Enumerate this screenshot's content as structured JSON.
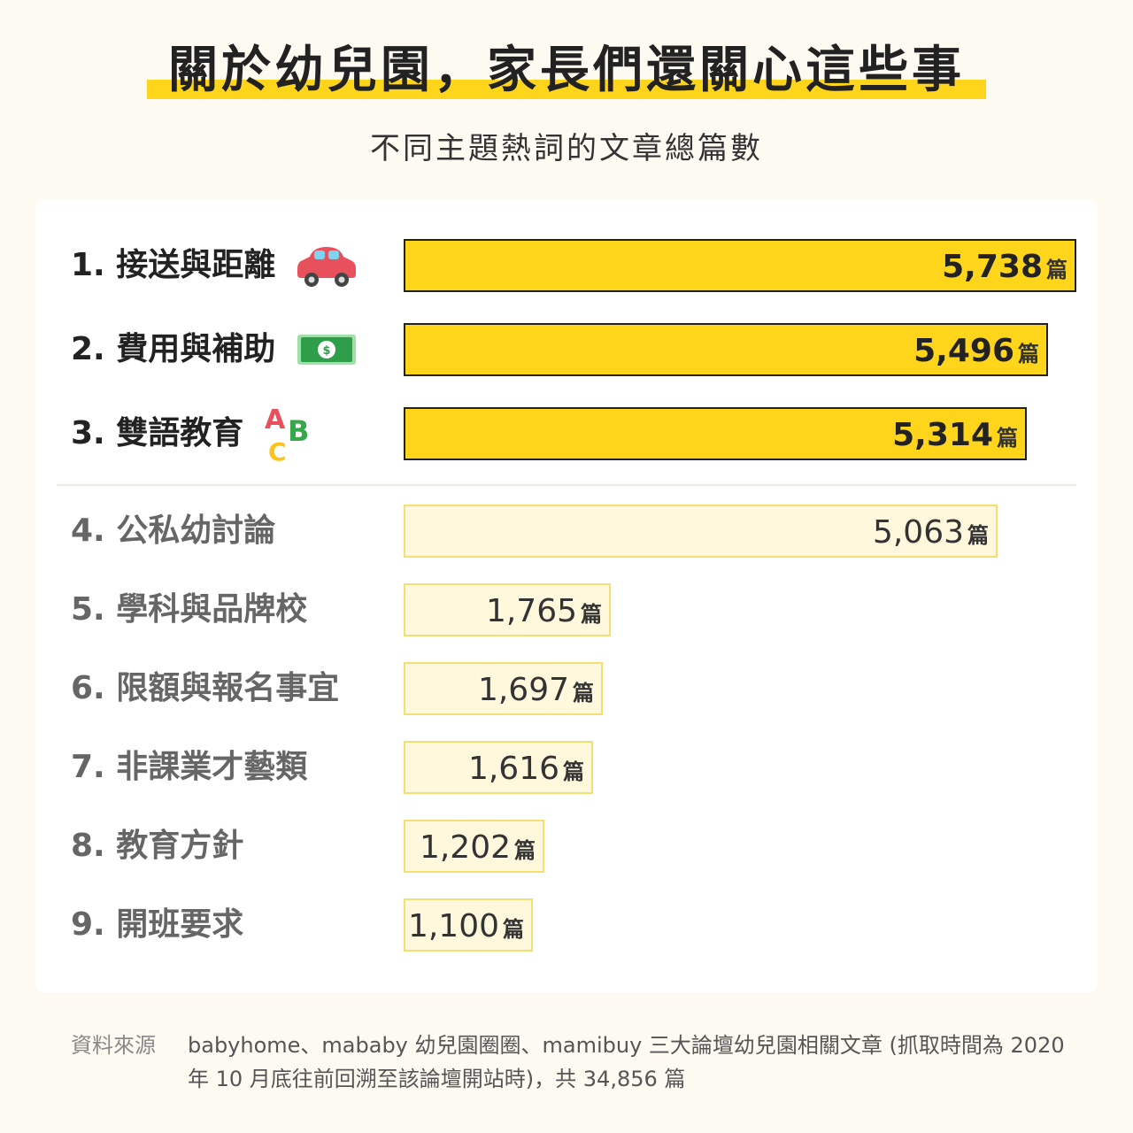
{
  "title": "關於幼兒園，家長們還關心這些事",
  "subtitle": "不同主題熱詞的文章總篇數",
  "unit": "篇",
  "chart_data": {
    "type": "bar",
    "orientation": "horizontal",
    "title": "關於幼兒園，家長們還關心這些事",
    "subtitle": "不同主題熱詞的文章總篇數",
    "categories": [
      "1. 接送與距離",
      "2. 費用與補助",
      "3. 雙語教育",
      "4. 公私幼討論",
      "5. 學科與品牌校",
      "6. 限額與報名事宜",
      "7. 非課業才藝類",
      "8. 教育方針",
      "9. 開班要求"
    ],
    "values": [
      5738,
      5496,
      5314,
      5063,
      1765,
      1697,
      1616,
      1202,
      1100
    ],
    "value_labels": [
      "5,738",
      "5,496",
      "5,314",
      "5,063",
      "1,765",
      "1,697",
      "1,616",
      "1,202",
      "1,100"
    ],
    "highlight_top": 3,
    "icons": [
      "car-icon",
      "money-icon",
      "abc-icon"
    ],
    "colors": {
      "highlight_bar": "#ffd51c",
      "highlight_border": "#222222",
      "rest_bar": "#fff8dc",
      "rest_border": "#f4df74"
    },
    "legend": "none",
    "grid": false
  },
  "source": {
    "label": "資料來源",
    "text": "babyhome、mababy 幼兒園圈圈、mamibuy 三大論壇幼兒園相關文章 (抓取時間為 2020 年 10 月底往前回溯至該論壇開站時)，共 34,856 篇"
  }
}
